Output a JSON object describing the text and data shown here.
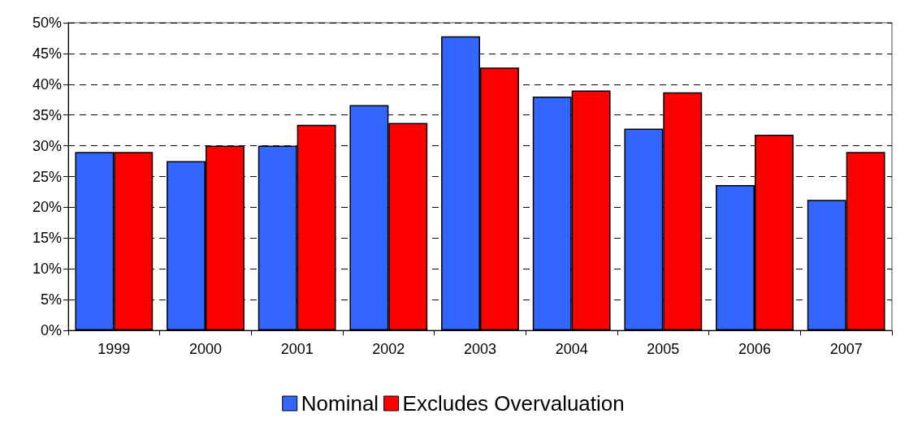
{
  "chart_data": {
    "type": "bar",
    "categories": [
      "1999",
      "2000",
      "2001",
      "2002",
      "2003",
      "2004",
      "2005",
      "2006",
      "2007"
    ],
    "series": [
      {
        "name": "Nominal",
        "color": "#3366ff",
        "values": [
          29.0,
          27.5,
          30.0,
          36.6,
          47.8,
          38.0,
          32.8,
          23.6,
          21.2
        ]
      },
      {
        "name": "Excludes Overvaluation",
        "color": "#ff0000",
        "values": [
          29.0,
          30.0,
          33.4,
          33.7,
          42.7,
          39.0,
          38.7,
          31.8,
          29.0
        ]
      }
    ],
    "ylim": [
      0,
      50
    ],
    "yticks": [
      {
        "value": 0,
        "label": "0%"
      },
      {
        "value": 5,
        "label": "5%"
      },
      {
        "value": 10,
        "label": "10%"
      },
      {
        "value": 15,
        "label": "15%"
      },
      {
        "value": 20,
        "label": "20%"
      },
      {
        "value": 25,
        "label": "25%"
      },
      {
        "value": 30,
        "label": "30%"
      },
      {
        "value": 35,
        "label": "35%"
      },
      {
        "value": 40,
        "label": "40%"
      },
      {
        "value": 45,
        "label": "45%"
      },
      {
        "value": 50,
        "label": "50%"
      }
    ],
    "grid": "y",
    "legend": "bottom"
  }
}
